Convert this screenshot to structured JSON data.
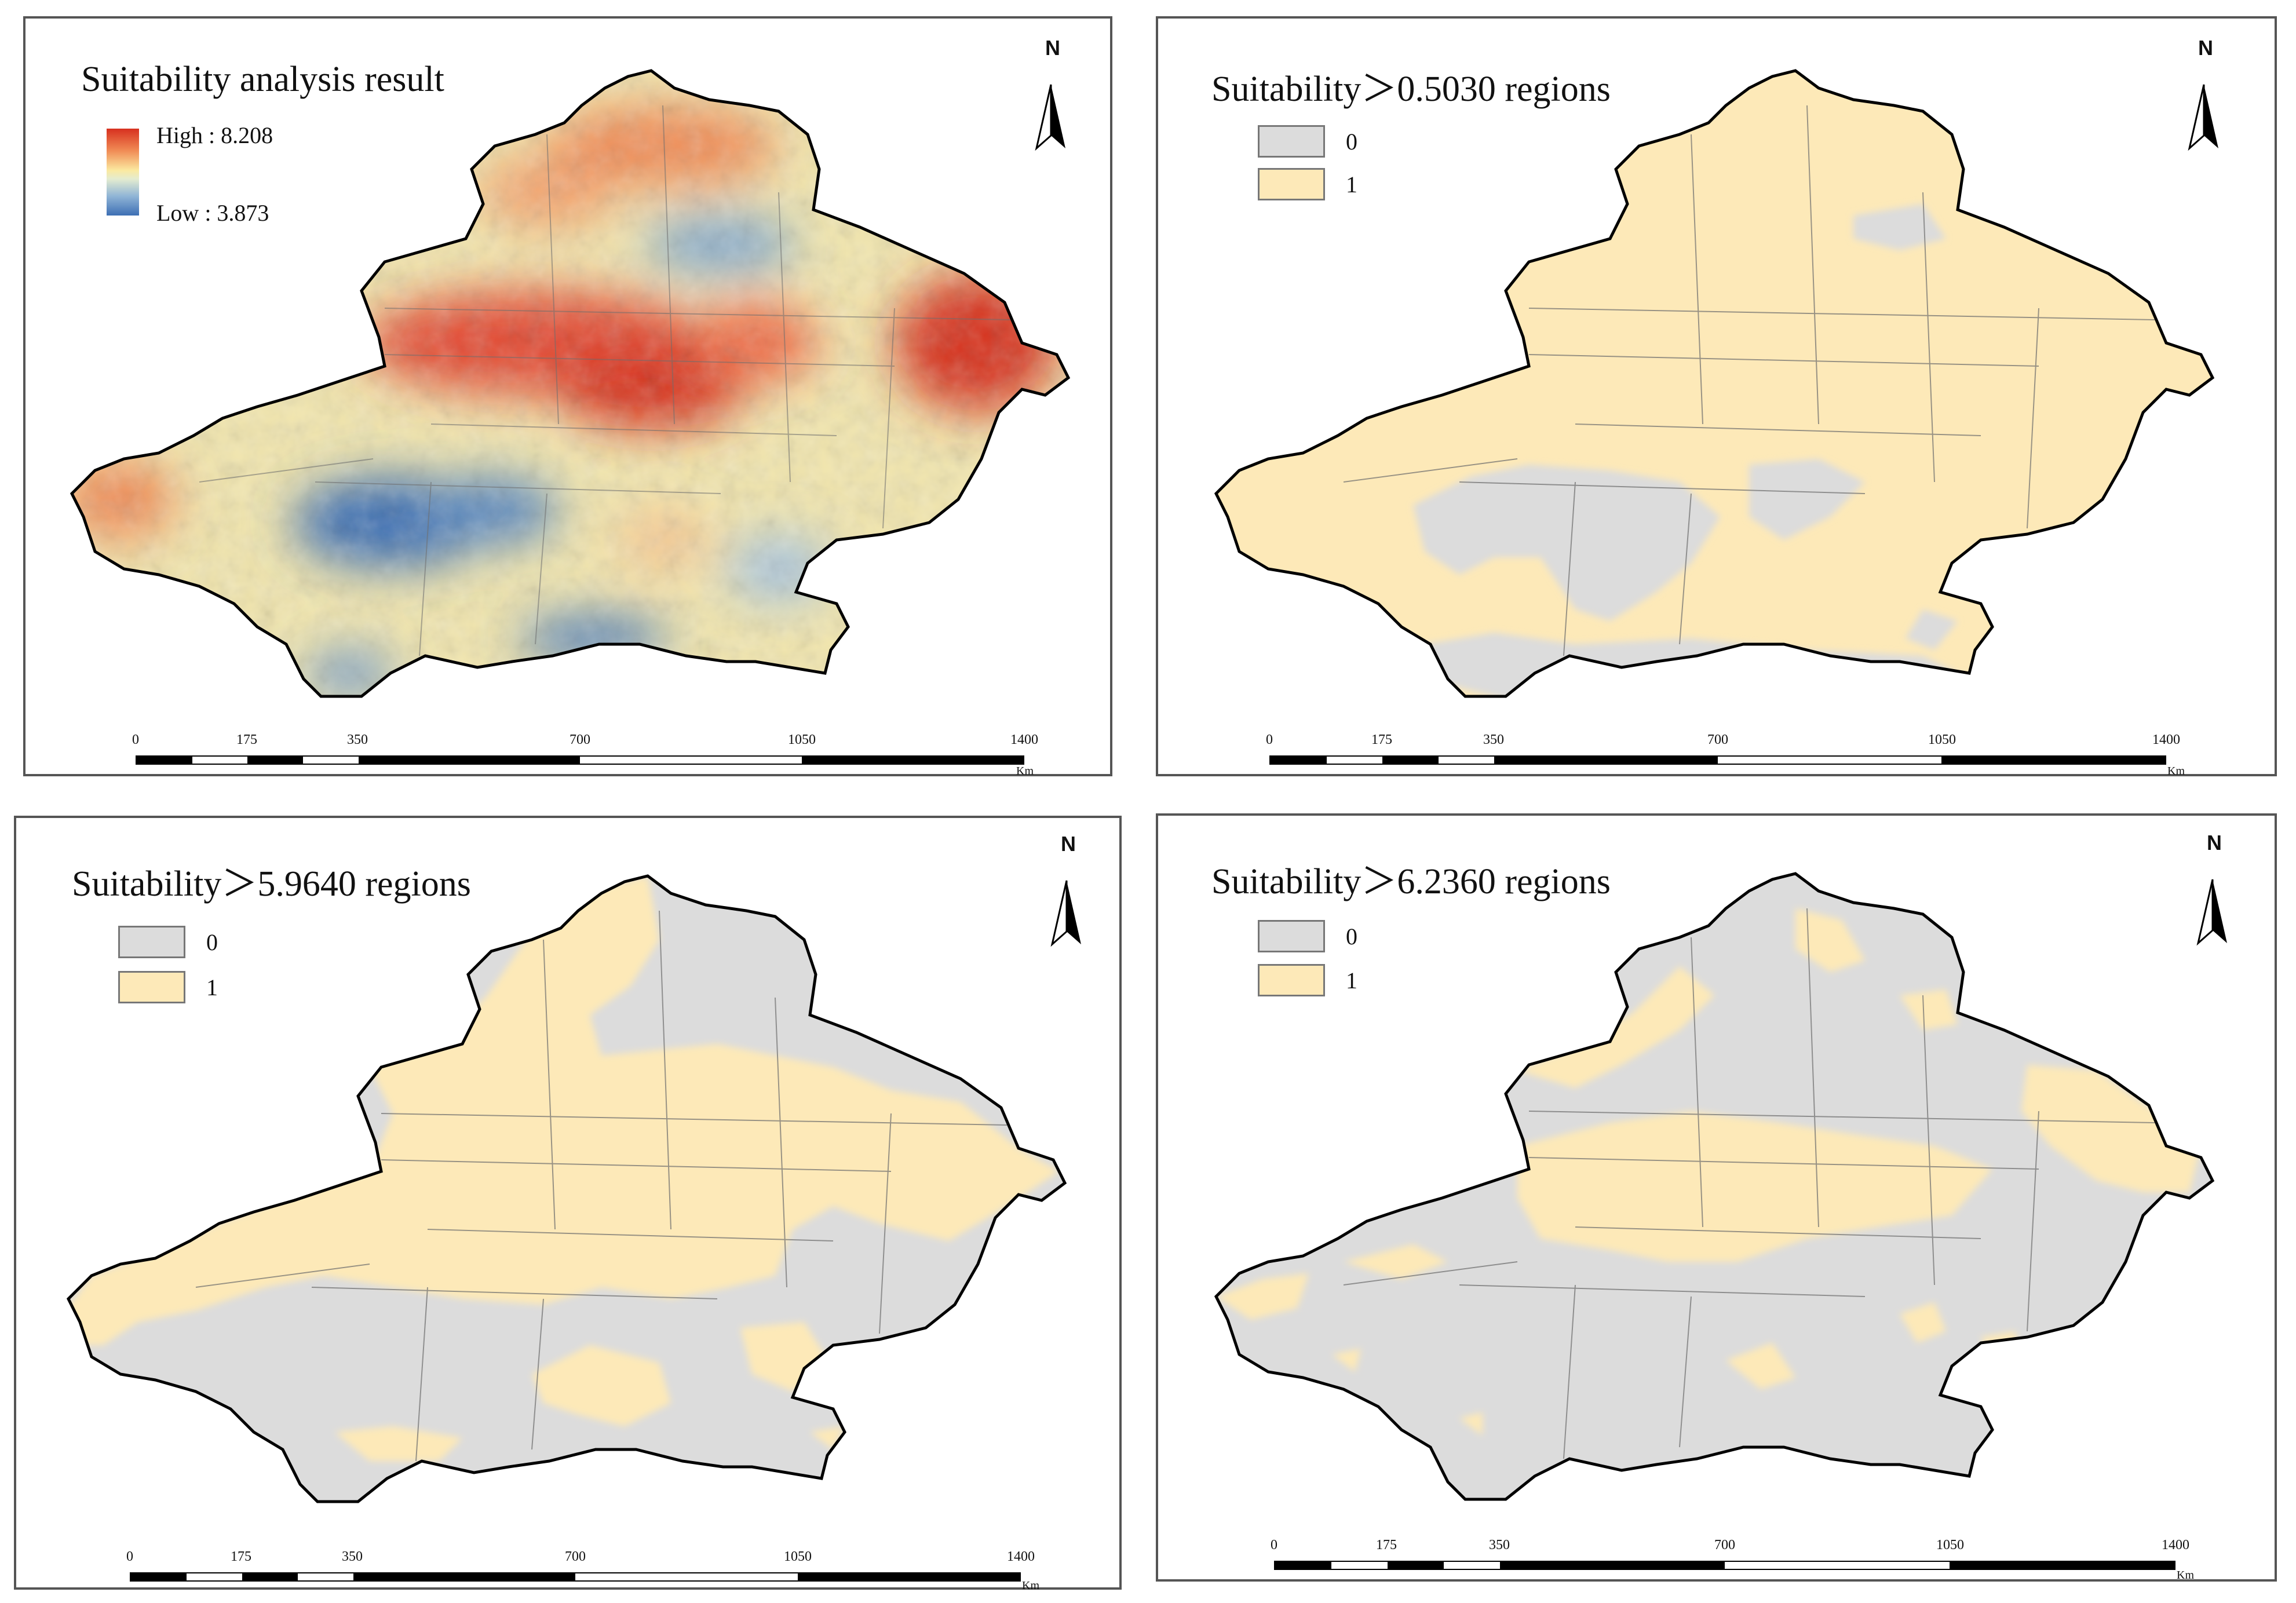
{
  "panels": [
    {
      "title": "Suitability analysis result",
      "legend_type": "gradient",
      "legend": {
        "high_label": "High : 8.208",
        "low_label": "Low : 3.873"
      },
      "north_label": "N",
      "scale": {
        "ticks": [
          "0",
          "175",
          "350",
          "700",
          "1050",
          "1400"
        ],
        "unit": "Km"
      }
    },
    {
      "title": "Suitability＞0.5030 regions",
      "legend_type": "binary",
      "legend": {
        "items": [
          {
            "label": "0",
            "color": "#dcdcdc"
          },
          {
            "label": "1",
            "color": "#fde9b8"
          }
        ]
      },
      "north_label": "N",
      "scale": {
        "ticks": [
          "0",
          "175",
          "350",
          "700",
          "1050",
          "1400"
        ],
        "unit": "Km"
      }
    },
    {
      "title": "Suitability＞5.9640 regions",
      "legend_type": "binary",
      "legend": {
        "items": [
          {
            "label": "0",
            "color": "#dcdcdc"
          },
          {
            "label": "1",
            "color": "#fde9b8"
          }
        ]
      },
      "north_label": "N",
      "scale": {
        "ticks": [
          "0",
          "175",
          "350",
          "700",
          "1050",
          "1400"
        ],
        "unit": "Km"
      }
    },
    {
      "title": "Suitability＞6.2360 regions",
      "legend_type": "binary",
      "legend": {
        "items": [
          {
            "label": "0",
            "color": "#dcdcdc"
          },
          {
            "label": "1",
            "color": "#fde9b8"
          }
        ]
      },
      "north_label": "N",
      "scale": {
        "ticks": [
          "0",
          "175",
          "350",
          "700",
          "1050",
          "1400"
        ],
        "unit": "Km"
      }
    }
  ],
  "colors": {
    "high": "#d7301f",
    "mid": "#fbe9a0",
    "low": "#3d6fb4",
    "unsuitable": "#dcdcdc",
    "suitable": "#fde9b8",
    "boundary": "#000000"
  }
}
